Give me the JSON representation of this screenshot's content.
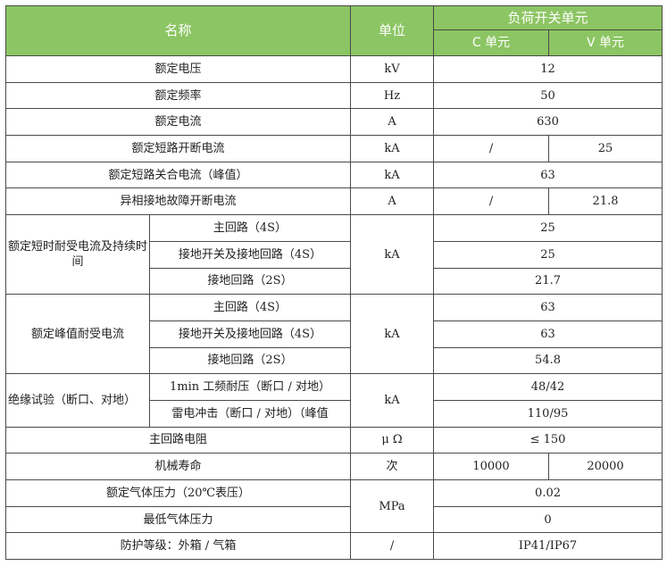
{
  "header": {
    "name": "名称",
    "unit": "单位",
    "group": "负荷开关单元",
    "c_unit": "C 单元",
    "v_unit": "V 单元"
  },
  "colors": {
    "header_bg": "#8cc563",
    "header_text": "#ffffff",
    "border": "#4a4a4a"
  },
  "rows": {
    "r1": {
      "name": "额定电压",
      "unit": "kV",
      "value": "12"
    },
    "r2": {
      "name": "额定频率",
      "unit": "Hz",
      "value": "50"
    },
    "r3": {
      "name": "额定电流",
      "unit": "A",
      "value": "630"
    },
    "r4": {
      "name": "额定短路开断电流",
      "unit": "kA",
      "c": "/",
      "v": "25"
    },
    "r5": {
      "name": "额定短路关合电流（峰值）",
      "unit": "kA",
      "value": "63"
    },
    "r6": {
      "name": "异相接地故障开断电流",
      "unit": "A",
      "c": "/",
      "v": "21.8"
    },
    "g1": {
      "name": "额定短时耐受电流及持续时间",
      "unit": "kA",
      "items": [
        {
          "sub": "主回路（4S）",
          "value": "25"
        },
        {
          "sub": "接地开关及接地回路（4S）",
          "value": "25"
        },
        {
          "sub": "接地回路（2S）",
          "value": "21.7"
        }
      ]
    },
    "g2": {
      "name": "额定峰值耐受电流",
      "unit": "kA",
      "items": [
        {
          "sub": "主回路（4S）",
          "value": "63"
        },
        {
          "sub": "接地开关及接地回路（4S）",
          "value": "63"
        },
        {
          "sub": "接地回路（2S）",
          "value": "54.8"
        }
      ]
    },
    "g3": {
      "name": "绝缘试验（断口、对地）",
      "unit": "kA",
      "items": [
        {
          "sub": "1min 工频耐压（断口 / 对地）",
          "value": "48/42"
        },
        {
          "sub": "雷电冲击（断口 / 对地）（峰值",
          "value": "110/95"
        }
      ]
    },
    "r7": {
      "name": "主回路电阻",
      "unit": "μ Ω",
      "value": "≤ 150"
    },
    "r8": {
      "name": "机械寿命",
      "unit": "次",
      "c": "10000",
      "v": "20000"
    },
    "r9": {
      "name": "额定气体压力（20℃表压）",
      "unit": "MPa",
      "value": "0.02"
    },
    "r10": {
      "name": "最低气体压力",
      "value": "0"
    },
    "r11": {
      "name": "防护等级：外箱 / 气箱",
      "unit": "/",
      "value": "IP41/IP67"
    }
  }
}
